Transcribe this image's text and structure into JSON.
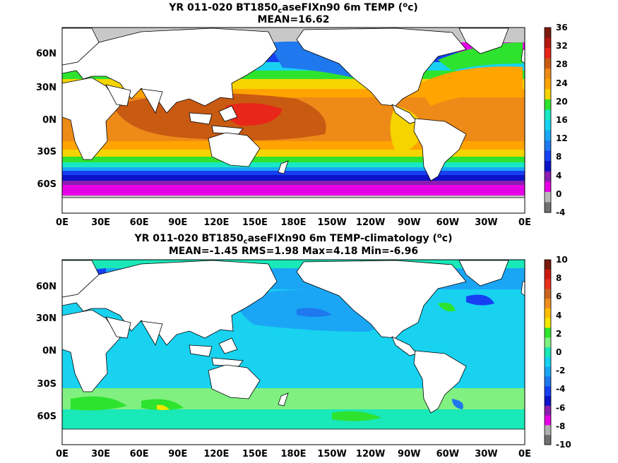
{
  "panels": [
    {
      "title_parts": [
        "YR 011-020 BT1850",
        "c",
        "aseFIXn90 6m TEMP (",
        "o",
        "c)"
      ],
      "stats": "MEAN=16.62",
      "colorbar": {
        "ticks": [
          "36",
          "32",
          "28",
          "24",
          "20",
          "16",
          "12",
          "8",
          "4",
          "0",
          "-4"
        ],
        "colors": [
          "#7a1a0e",
          "#b5160f",
          "#e8261a",
          "#c85a12",
          "#ee8a18",
          "#ffa400",
          "#f5d400",
          "#2ee32e",
          "#19e8c4",
          "#18d2f0",
          "#1aa6f5",
          "#1f78ee",
          "#1740f2",
          "#0d13c8",
          "#8a1eb0",
          "#e600e6",
          "#b8b8b8",
          "#707070"
        ]
      },
      "x_ticks": [
        "0E",
        "30E",
        "60E",
        "90E",
        "120E",
        "150E",
        "180E",
        "150W",
        "120W",
        "90W",
        "60W",
        "30W",
        "0E"
      ],
      "y_ticks": [
        "60N",
        "30N",
        "0N",
        "30S",
        "60S"
      ]
    },
    {
      "title_parts": [
        "YR 011-020 BT1850",
        "c",
        "aseFIXn90 6m TEMP-climatology (",
        "o",
        "c)"
      ],
      "stats": "MEAN=-1.45   RMS=1.98   Max=4.18   Min=-6.96",
      "colorbar": {
        "ticks": [
          "10",
          "8",
          "6",
          "4",
          "2",
          "0",
          "-2",
          "-4",
          "-6",
          "-8",
          "-10"
        ],
        "colors": [
          "#7a1a0e",
          "#c81a12",
          "#e8301c",
          "#c86420",
          "#ee8e1e",
          "#ffbe00",
          "#f5e600",
          "#2ee32e",
          "#80f080",
          "#19e8b8",
          "#18d2f0",
          "#1aa6f5",
          "#1f78ee",
          "#1740f2",
          "#0d13c8",
          "#8a1eb0",
          "#e600e6",
          "#b0b0b0",
          "#707070"
        ]
      },
      "x_ticks": [
        "0E",
        "30E",
        "60E",
        "90E",
        "120E",
        "150E",
        "180E",
        "150W",
        "120W",
        "90W",
        "60W",
        "30W",
        "0E"
      ],
      "y_ticks": [
        "60N",
        "30N",
        "0N",
        "30S",
        "60S"
      ]
    }
  ]
}
